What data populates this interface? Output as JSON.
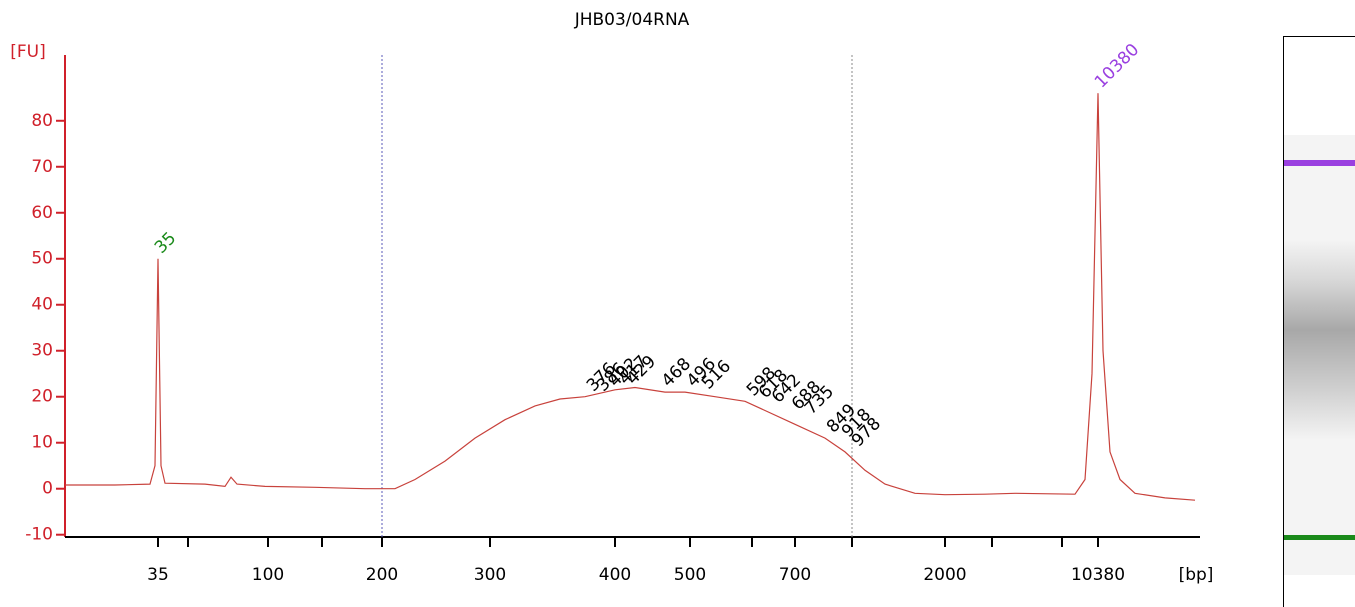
{
  "chart_data": {
    "type": "line",
    "title": "JHB03/04RNA",
    "xlabel": "[bp]",
    "ylabel": "[FU]",
    "axis_color": "#d0202a",
    "xlim": [
      0,
      113.5
    ],
    "ylim": [
      -10.5,
      94.3
    ],
    "yticks": [
      -10,
      0,
      10,
      20,
      30,
      40,
      50,
      60,
      70,
      80
    ],
    "xticks": [
      {
        "value": 9.3,
        "label": "35"
      },
      {
        "value": 20.3,
        "label": "100"
      },
      {
        "value": 31.7,
        "label": "200"
      },
      {
        "value": 42.5,
        "label": "300"
      },
      {
        "value": 55,
        "label": "400"
      },
      {
        "value": 62.5,
        "label": "500"
      },
      {
        "value": 73,
        "label": "700"
      },
      {
        "value": 88,
        "label": "2000"
      },
      {
        "value": 103.3,
        "label": "10380"
      }
    ],
    "minor_xticks": [
      12.3,
      25.7,
      68.7,
      78.7,
      92.7,
      99.7
    ],
    "markers": [
      {
        "x": 31.7,
        "color": "#5a5ab8"
      },
      {
        "x": 78.7,
        "color": "#888888"
      }
    ],
    "x": [
      0,
      5,
      8.5,
      9.0,
      9.3,
      9.6,
      10,
      14,
      16,
      16.6,
      17.2,
      20,
      25,
      30,
      33,
      35,
      38,
      41,
      44,
      47,
      49.5,
      52,
      55,
      57,
      60,
      62,
      65,
      68,
      70,
      73,
      76,
      78,
      80,
      82,
      85,
      88,
      92,
      95,
      101,
      102,
      102.7,
      103.3,
      103.8,
      104.5,
      105.5,
      107,
      110,
      113
    ],
    "series": [
      {
        "color": "#c8423c",
        "values": [
          0.8,
          0.8,
          1,
          5,
          50,
          5,
          1.2,
          1,
          0.5,
          2.5,
          1,
          0.5,
          0.3,
          0,
          0,
          2,
          6,
          11,
          15,
          18,
          19.5,
          20,
          21.5,
          22,
          21,
          21,
          20,
          19,
          17,
          14,
          11,
          8,
          4,
          1,
          -1,
          -1.3,
          -1.2,
          -1,
          -1.2,
          2,
          25,
          86,
          30,
          8,
          2,
          -1,
          -2,
          -2.5
        ]
      }
    ],
    "peak_labels": [
      {
        "x": 9.3,
        "y": 50,
        "label": "35",
        "color": "#1a8a1a"
      },
      {
        "x": 103.3,
        "y": 86,
        "label": "10380",
        "color": "#9a40e0"
      },
      {
        "x": 52.5,
        "y": 20,
        "label": "376",
        "color": "#000000"
      },
      {
        "x": 53.5,
        "y": 20,
        "label": "386",
        "color": "#000000"
      },
      {
        "x": 54.7,
        "y": 21,
        "label": "402",
        "color": "#000000"
      },
      {
        "x": 55.7,
        "y": 21.5,
        "label": "417",
        "color": "#000000"
      },
      {
        "x": 56.5,
        "y": 21.5,
        "label": "429",
        "color": "#000000"
      },
      {
        "x": 60,
        "y": 21,
        "label": "468",
        "color": "#000000"
      },
      {
        "x": 62.5,
        "y": 21,
        "label": "496",
        "color": "#000000"
      },
      {
        "x": 64,
        "y": 20.5,
        "label": "516",
        "color": "#000000"
      },
      {
        "x": 68.5,
        "y": 19,
        "label": "598",
        "color": "#000000"
      },
      {
        "x": 69.7,
        "y": 18.5,
        "label": "618",
        "color": "#000000"
      },
      {
        "x": 71,
        "y": 17.5,
        "label": "642",
        "color": "#000000"
      },
      {
        "x": 73,
        "y": 16,
        "label": "688",
        "color": "#000000"
      },
      {
        "x": 74.3,
        "y": 15,
        "label": "735",
        "color": "#000000"
      },
      {
        "x": 76.5,
        "y": 11,
        "label": "849",
        "color": "#000000"
      },
      {
        "x": 78,
        "y": 10,
        "label": "918",
        "color": "#000000"
      },
      {
        "x": 79,
        "y": 8,
        "label": "978",
        "color": "#000000"
      }
    ]
  }
}
